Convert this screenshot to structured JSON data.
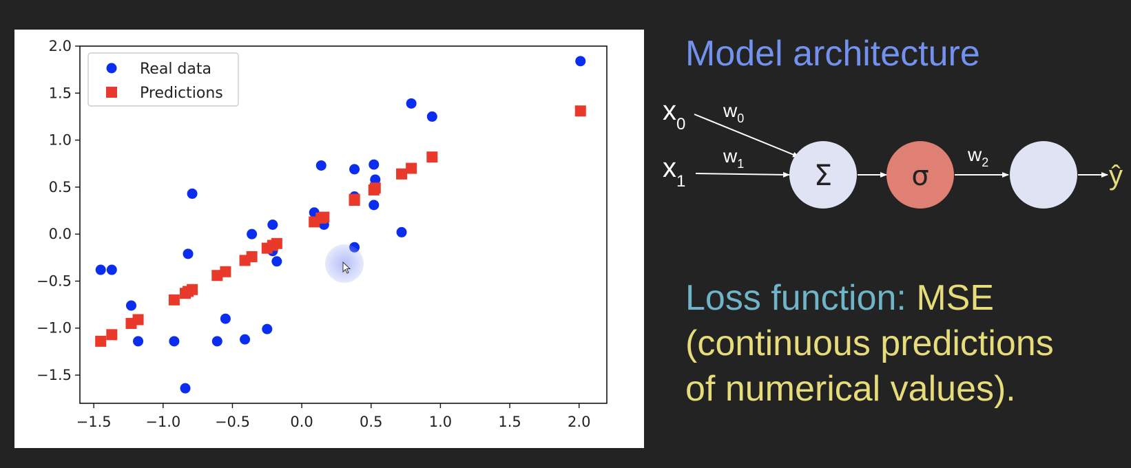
{
  "chart_data": {
    "type": "scatter",
    "xlim": [
      -1.6,
      2.2
    ],
    "ylim": [
      -1.8,
      2.0
    ],
    "xticks": [
      "−1.5",
      "−1.0",
      "−0.5",
      "0.0",
      "0.5",
      "1.0",
      "1.5",
      "2.0"
    ],
    "xtick_values": [
      -1.5,
      -1.0,
      -0.5,
      0.0,
      0.5,
      1.0,
      1.5,
      2.0
    ],
    "yticks": [
      "2.0",
      "1.5",
      "1.0",
      "0.5",
      "0.0",
      "−0.5",
      "−1.0",
      "−1.5"
    ],
    "ytick_values": [
      2.0,
      1.5,
      1.0,
      0.5,
      0.0,
      -0.5,
      -1.0,
      -1.5
    ],
    "legend_position": "top-left",
    "series": [
      {
        "name": "Real data",
        "marker": "circle",
        "color": "#0a2df0",
        "points": [
          [
            -1.45,
            -0.38
          ],
          [
            -1.37,
            -0.38
          ],
          [
            -1.23,
            -0.76
          ],
          [
            -1.18,
            -1.14
          ],
          [
            -0.92,
            -1.14
          ],
          [
            -0.84,
            -1.64
          ],
          [
            -0.82,
            -0.21
          ],
          [
            -0.79,
            0.43
          ],
          [
            -0.61,
            -1.14
          ],
          [
            -0.55,
            -0.9
          ],
          [
            -0.41,
            -1.12
          ],
          [
            -0.36,
            0.0
          ],
          [
            -0.25,
            -1.01
          ],
          [
            -0.21,
            0.1
          ],
          [
            -0.21,
            -0.18
          ],
          [
            -0.18,
            -0.29
          ],
          [
            0.09,
            0.23
          ],
          [
            0.14,
            0.73
          ],
          [
            0.16,
            0.1
          ],
          [
            0.38,
            0.69
          ],
          [
            0.38,
            0.4
          ],
          [
            0.38,
            -0.14
          ],
          [
            0.52,
            0.74
          ],
          [
            0.52,
            0.31
          ],
          [
            0.53,
            0.58
          ],
          [
            0.72,
            0.02
          ],
          [
            0.79,
            1.39
          ],
          [
            0.94,
            1.25
          ],
          [
            2.01,
            1.84
          ]
        ]
      },
      {
        "name": "Predictions",
        "marker": "square",
        "color": "#e8392a",
        "points": [
          [
            -1.45,
            -1.14
          ],
          [
            -1.37,
            -1.07
          ],
          [
            -1.23,
            -0.95
          ],
          [
            -1.18,
            -0.91
          ],
          [
            -0.92,
            -0.7
          ],
          [
            -0.84,
            -0.63
          ],
          [
            -0.82,
            -0.61
          ],
          [
            -0.79,
            -0.59
          ],
          [
            -0.61,
            -0.44
          ],
          [
            -0.55,
            -0.4
          ],
          [
            -0.41,
            -0.28
          ],
          [
            -0.36,
            -0.24
          ],
          [
            -0.25,
            -0.15
          ],
          [
            -0.21,
            -0.12
          ],
          [
            -0.18,
            -0.1
          ],
          [
            0.09,
            0.13
          ],
          [
            0.14,
            0.17
          ],
          [
            0.16,
            0.18
          ],
          [
            0.38,
            0.36
          ],
          [
            0.38,
            0.37
          ],
          [
            0.52,
            0.47
          ],
          [
            0.53,
            0.49
          ],
          [
            0.72,
            0.64
          ],
          [
            0.79,
            0.7
          ],
          [
            0.94,
            0.82
          ],
          [
            2.01,
            1.31
          ]
        ]
      }
    ]
  },
  "diagram": {
    "title": "Model architecture",
    "inputs": [
      {
        "var": "x",
        "sub": "0",
        "weight": "w",
        "weight_sub": "0"
      },
      {
        "var": "x",
        "sub": "1",
        "weight": "w",
        "weight_sub": "1"
      }
    ],
    "sum_symbol": "Σ",
    "activation_symbol": "σ",
    "output_weight": "w",
    "output_weight_sub": "2",
    "output_symbol": "ŷ",
    "colors": {
      "title": "#7391ef",
      "sum_node": "#dfe3f3",
      "activation_node": "#e07f74",
      "output_node": "#dfe3f3",
      "output_symbol": "#e6dc7a"
    }
  },
  "loss": {
    "label": "Loss function:",
    "value": "MSE",
    "desc_line1": "(continuous predictions",
    "desc_line2": "of numerical values)."
  }
}
